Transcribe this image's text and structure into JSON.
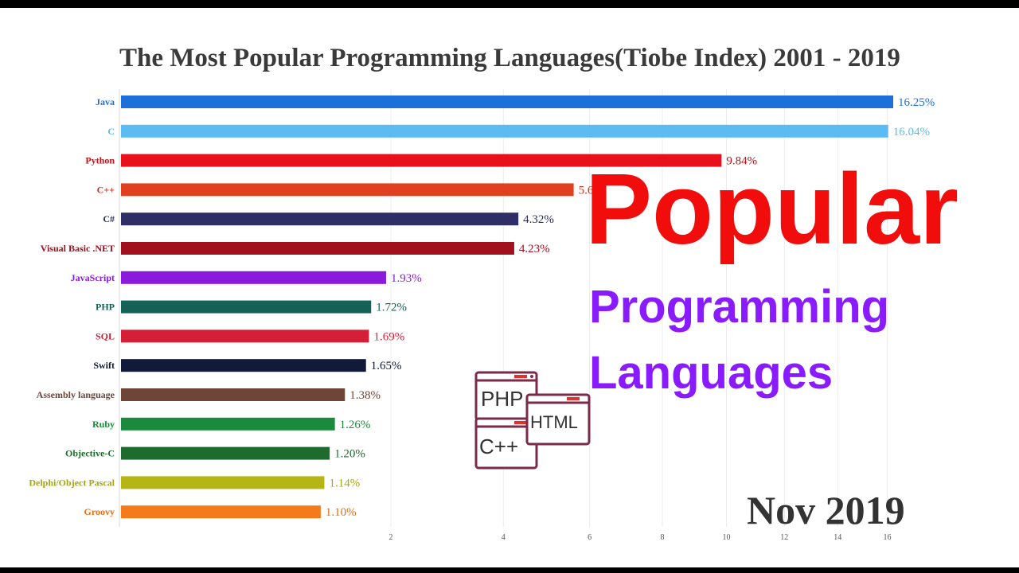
{
  "chart_data": {
    "type": "bar",
    "orientation": "horizontal",
    "title": "The Most Popular Programming Languages(Tiobe Index) 2001 - 2019",
    "period_label": "Nov 2019",
    "x_scale": "sqrt",
    "xlim": [
      0,
      16.25
    ],
    "x_ticks": [
      "2",
      "4",
      "6",
      "8",
      "10",
      "12",
      "14",
      "16"
    ],
    "grid": true,
    "bars": [
      {
        "name": "Java",
        "value": 16.25,
        "label": "16.25%",
        "color": "#1e6fd9",
        "label_color": "#1e6fd9"
      },
      {
        "name": "C",
        "value": 16.04,
        "label": "16.04%",
        "color": "#5cbbf0",
        "label_color": "#5cbbf0"
      },
      {
        "name": "Python",
        "value": 9.84,
        "label": "9.84%",
        "color": "#e8101a",
        "label_color": "#c40f16"
      },
      {
        "name": "C++",
        "value": 5.6,
        "label": "5.6%",
        "color": "#e0401f",
        "label_color": "#d0301a"
      },
      {
        "name": "C#",
        "value": 4.32,
        "label": "4.32%",
        "color": "#2f2f66",
        "label_color": "#2a2a5a"
      },
      {
        "name": "Visual Basic .NET",
        "value": 4.23,
        "label": "4.23%",
        "color": "#a1101f",
        "label_color": "#a1101f"
      },
      {
        "name": "JavaScript",
        "value": 1.93,
        "label": "1.93%",
        "color": "#8a1bdd",
        "label_color": "#8a1bdd"
      },
      {
        "name": "PHP",
        "value": 1.72,
        "label": "1.72%",
        "color": "#146155",
        "label_color": "#146155"
      },
      {
        "name": "SQL",
        "value": 1.69,
        "label": "1.69%",
        "color": "#d41f36",
        "label_color": "#d41f36"
      },
      {
        "name": "Swift",
        "value": 1.65,
        "label": "1.65%",
        "color": "#121a3a",
        "label_color": "#121a3a"
      },
      {
        "name": "Assembly language",
        "value": 1.38,
        "label": "1.38%",
        "color": "#6e4638",
        "label_color": "#6e4638"
      },
      {
        "name": "Ruby",
        "value": 1.26,
        "label": "1.26%",
        "color": "#1c8a3c",
        "label_color": "#1c8a3c"
      },
      {
        "name": "Objective-C",
        "value": 1.2,
        "label": "1.20%",
        "color": "#1e6b2e",
        "label_color": "#1e6b2e"
      },
      {
        "name": "Delphi/Object Pascal",
        "value": 1.14,
        "label": "1.14%",
        "color": "#b5b515",
        "label_color": "#a6a610"
      },
      {
        "name": "Groovy",
        "value": 1.1,
        "label": "1.10%",
        "color": "#f57a1c",
        "label_color": "#e86c10"
      }
    ]
  },
  "overlay": {
    "headline": "Popular",
    "line2": "Programming",
    "line3": "Languages",
    "headline_color": "#f20d0d",
    "subline_color": "#8a1bff"
  },
  "icon": {
    "name": "code-files-icon",
    "labels": [
      "PHP",
      "HTML",
      "C++"
    ]
  }
}
